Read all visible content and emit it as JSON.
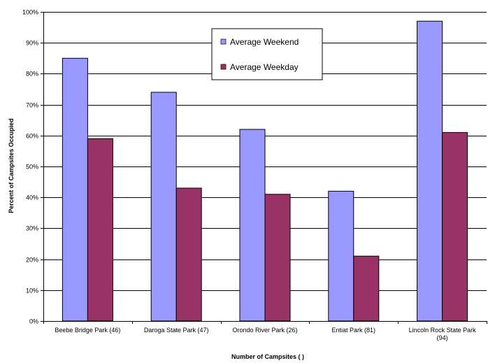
{
  "chart_data": {
    "type": "bar",
    "title": "",
    "xlabel": "Number of Campsites ( )",
    "ylabel": "Percent of Campsites Occupied",
    "categories": [
      [
        "Beebe Bridge Park (46)"
      ],
      [
        "Daroga State Park (47)"
      ],
      [
        "Orondo River Park (26)"
      ],
      [
        "Entiat Park (81)"
      ],
      [
        "Lincoln Rock State Park",
        "(94)"
      ]
    ],
    "series": [
      {
        "name": "Average Weekend",
        "color": "#9999ff",
        "values": [
          85,
          74,
          62,
          42,
          97
        ]
      },
      {
        "name": "Average Weekday",
        "color": "#993366",
        "values": [
          59,
          43,
          41,
          21,
          61
        ]
      }
    ],
    "ylim": [
      0,
      100
    ],
    "yticks": [
      "0%",
      "10%",
      "20%",
      "30%",
      "40%",
      "50%",
      "60%",
      "70%",
      "80%",
      "90%",
      "100%"
    ],
    "grid": true,
    "legend_position": "top-center"
  }
}
